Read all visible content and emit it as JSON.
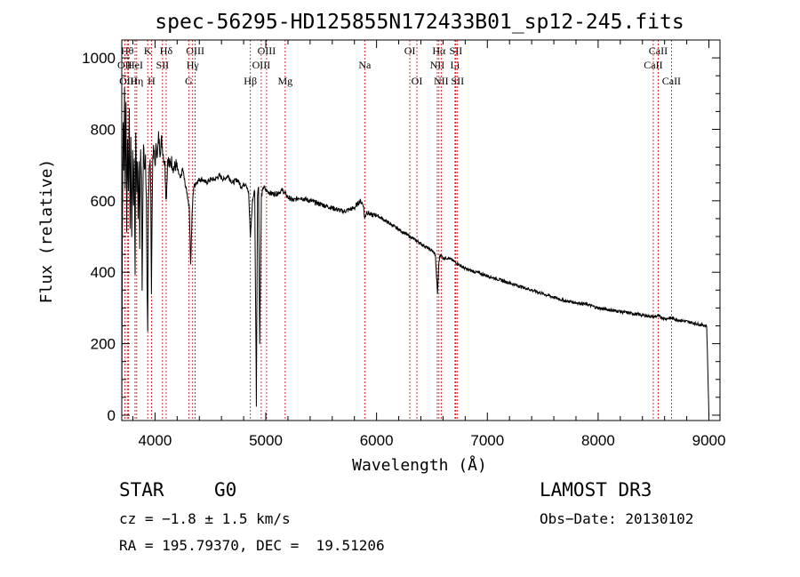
{
  "chart_data": {
    "type": "line",
    "title": "spec-56295-HD125855N172433B01_sp12-245.fits",
    "xlabel": "Wavelength (Å)",
    "ylabel": "Flux (relative)",
    "xlim": [
      3700,
      9100
    ],
    "ylim": [
      -15,
      1050
    ],
    "xticks": [
      4000,
      5000,
      6000,
      7000,
      8000,
      9000
    ],
    "xtick_labels": [
      "4000",
      "5000",
      "6000",
      "7000",
      "8000",
      "9000"
    ],
    "yticks": [
      0,
      200,
      400,
      600,
      800,
      1000
    ],
    "ytick_labels": [
      "0",
      "200",
      "400",
      "600",
      "800",
      "1000"
    ],
    "series": [
      {
        "name": "flux",
        "x": [
          3700,
          3705,
          3712,
          3718,
          3725,
          3730,
          3738,
          3745,
          3752,
          3760,
          3768,
          3775,
          3782,
          3790,
          3798,
          3806,
          3812,
          3820,
          3826,
          3835,
          3840,
          3848,
          3856,
          3862,
          3870,
          3878,
          3884,
          3889,
          3896,
          3905,
          3914,
          3922,
          3928,
          3934,
          3940,
          3948,
          3956,
          3962,
          3968,
          3972,
          3980,
          3990,
          4000,
          4012,
          4022,
          4032,
          4045,
          4060,
          4075,
          4090,
          4101,
          4115,
          4130,
          4150,
          4170,
          4190,
          4210,
          4230,
          4250,
          4270,
          4290,
          4310,
          4322,
          4335,
          4340,
          4350,
          4370,
          4400,
          4430,
          4460,
          4500,
          4540,
          4580,
          4620,
          4660,
          4700,
          4740,
          4780,
          4820,
          4845,
          4861,
          4880,
          4900,
          4915,
          4925,
          4935,
          4945,
          4960,
          4980,
          5000,
          5050,
          5100,
          5150,
          5200,
          5250,
          5300,
          5400,
          5500,
          5600,
          5700,
          5800,
          5850,
          5880,
          5893,
          5910,
          5950,
          6000,
          6050,
          6100,
          6150,
          6200,
          6250,
          6300,
          6350,
          6400,
          6450,
          6500,
          6530,
          6550,
          6563,
          6575,
          6600,
          6650,
          6700,
          6750,
          6800,
          6900,
          7000,
          7100,
          7200,
          7300,
          7400,
          7500,
          7600,
          7700,
          7800,
          7900,
          8000,
          8100,
          8200,
          8300,
          8400,
          8500,
          8542,
          8600,
          8662,
          8700,
          8800,
          8900,
          8980,
          9000,
          9005
        ],
        "y": [
          0,
          480,
          820,
          700,
          920,
          650,
          880,
          500,
          790,
          620,
          860,
          540,
          760,
          480,
          740,
          600,
          720,
          400,
          780,
          640,
          720,
          560,
          700,
          480,
          760,
          650,
          330,
          560,
          760,
          690,
          720,
          600,
          350,
          220,
          580,
          700,
          720,
          600,
          320,
          520,
          730,
          740,
          700,
          760,
          720,
          780,
          740,
          770,
          730,
          700,
          600,
          720,
          700,
          710,
          690,
          700,
          680,
          660,
          690,
          650,
          620,
          580,
          420,
          560,
          600,
          640,
          650,
          660,
          660,
          650,
          660,
          660,
          670,
          660,
          670,
          650,
          660,
          640,
          650,
          620,
          500,
          600,
          630,
          30,
          620,
          640,
          200,
          610,
          640,
          630,
          620,
          620,
          630,
          610,
          600,
          610,
          600,
          590,
          580,
          570,
          580,
          600,
          590,
          550,
          570,
          560,
          560,
          550,
          540,
          530,
          520,
          510,
          500,
          490,
          480,
          470,
          460,
          450,
          340,
          430,
          450,
          440,
          440,
          430,
          420,
          410,
          400,
          390,
          380,
          370,
          360,
          350,
          340,
          330,
          320,
          315,
          310,
          300,
          295,
          290,
          285,
          280,
          275,
          278,
          270,
          272,
          268,
          262,
          255,
          250,
          0,
          0
        ]
      }
    ],
    "line_markers": [
      {
        "label": "OII",
        "x": 3727,
        "row": 2
      },
      {
        "label": "Hθ",
        "x": 3750,
        "row": 1
      },
      {
        "label": "OIII",
        "x": 3760,
        "row": 3
      },
      {
        "label": "Hη",
        "x": 3835,
        "row": 3
      },
      {
        "label": "HeI",
        "x": 3820,
        "row": 2
      },
      {
        "label": "K",
        "x": 3934,
        "row": 1
      },
      {
        "label": "SII",
        "x": 4068,
        "row": 2
      },
      {
        "label": "H",
        "x": 3968,
        "row": 3
      },
      {
        "label": "Hδ",
        "x": 4101,
        "row": 1
      },
      {
        "label": "OIII",
        "x": 4363,
        "row": 1
      },
      {
        "label": "Hγ",
        "x": 4340,
        "row": 2
      },
      {
        "label": "G",
        "x": 4304,
        "row": 3
      },
      {
        "label": "Hβ",
        "x": 4861,
        "row": 3
      },
      {
        "label": "OIII",
        "x": 5007,
        "row": 1
      },
      {
        "label": "OIII",
        "x": 4959,
        "row": 2
      },
      {
        "label": "Mg",
        "x": 5175,
        "row": 3
      },
      {
        "label": "Na",
        "x": 5893,
        "row": 2
      },
      {
        "label": "OI",
        "x": 6300,
        "row": 1
      },
      {
        "label": "OI",
        "x": 6364,
        "row": 3
      },
      {
        "label": "Hα",
        "x": 6563,
        "row": 1
      },
      {
        "label": "NII",
        "x": 6548,
        "row": 2
      },
      {
        "label": "NII",
        "x": 6583,
        "row": 3
      },
      {
        "label": "SII",
        "x": 6716,
        "row": 1
      },
      {
        "label": "Li",
        "x": 6708,
        "row": 2
      },
      {
        "label": "SII",
        "x": 6731,
        "row": 3
      },
      {
        "label": "CaII",
        "x": 8542,
        "row": 1
      },
      {
        "label": "CaII",
        "x": 8498,
        "row": 2
      },
      {
        "label": "CaII",
        "x": 8662,
        "row": 3
      }
    ]
  },
  "info": {
    "class_type": "STAR",
    "subclass": "G0",
    "survey": "LAMOST DR3",
    "cz": "cz = −1.8 ± 1.5 km/s",
    "obs_date": "Obs−Date: 20130102",
    "coords": "RA = 195.79370, DEC =  19.51206"
  },
  "colors": {
    "marker_line": "#cc0000",
    "spectrum": "#000000",
    "axes": "#000000"
  }
}
